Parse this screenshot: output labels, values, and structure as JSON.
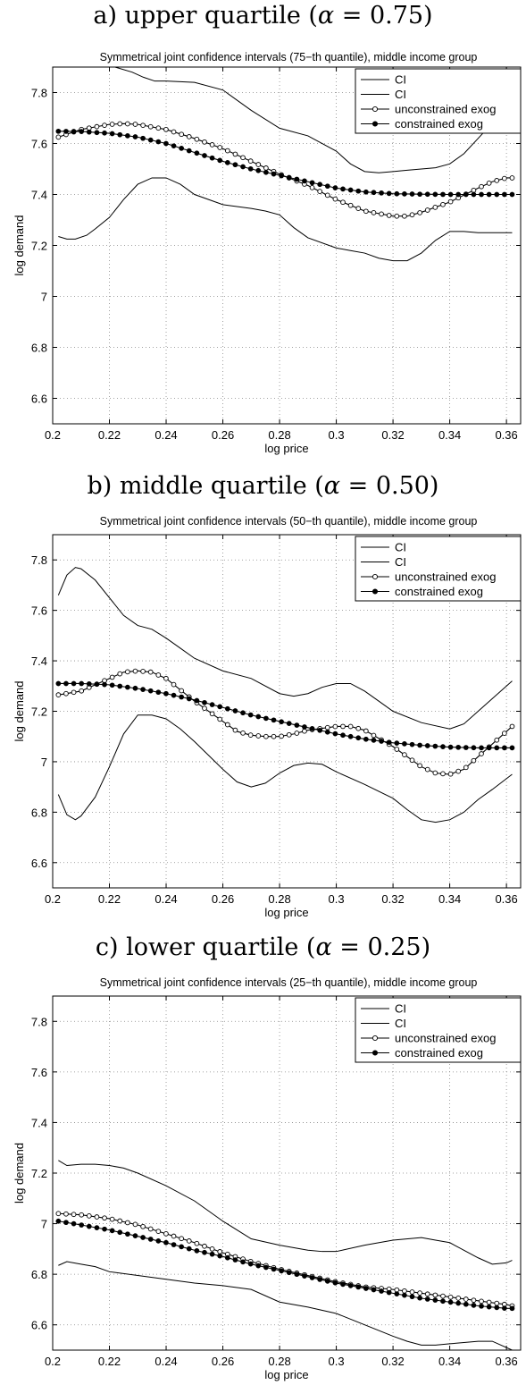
{
  "captions": [
    {
      "prefix": "a) upper quartile (",
      "alpha": "α",
      "rest": " = 0.75)"
    },
    {
      "prefix": "b) middle quartile (",
      "alpha": "α",
      "rest": " = 0.50)"
    },
    {
      "prefix": "c) lower quartile (",
      "alpha": "α",
      "rest": " = 0.25)"
    }
  ],
  "chart_data": [
    {
      "type": "line",
      "title": "Symmetrical joint confidence intervals (75−th quantile), middle income group",
      "xlabel": "log price",
      "ylabel": "log demand",
      "xlim": [
        0.2,
        0.365
      ],
      "ylim": [
        6.5,
        7.9
      ],
      "xticks": [
        0.2,
        0.22,
        0.24,
        0.26,
        0.28,
        0.3,
        0.32,
        0.34,
        0.36
      ],
      "xtick_labels": [
        "0.2",
        "0.22",
        "0.24",
        "0.26",
        "0.28",
        "0.3",
        "0.32",
        "0.34",
        "0.36"
      ],
      "yticks": [
        6.6,
        6.8,
        7,
        7.2,
        7.4,
        7.6,
        7.8
      ],
      "ytick_labels": [
        "6.6",
        "6.8",
        "7",
        "7.2",
        "7.4",
        "7.6",
        "7.8"
      ],
      "grid": true,
      "legend_position": "top-right",
      "series": [
        {
          "name": "CI",
          "style": "line",
          "x": [
            0.222,
            0.228,
            0.232,
            0.236,
            0.24,
            0.25,
            0.26,
            0.27,
            0.28,
            0.29,
            0.3,
            0.305,
            0.31,
            0.315,
            0.32,
            0.325,
            0.33,
            0.335,
            0.34,
            0.345,
            0.35,
            0.355,
            0.36,
            0.362
          ],
          "y": [
            7.9,
            7.88,
            7.86,
            7.845,
            7.845,
            7.84,
            7.81,
            7.73,
            7.66,
            7.63,
            7.57,
            7.52,
            7.49,
            7.485,
            7.49,
            7.495,
            7.5,
            7.505,
            7.52,
            7.56,
            7.62,
            7.68,
            7.74,
            7.76
          ]
        },
        {
          "name": "CI",
          "style": "line",
          "x": [
            0.202,
            0.205,
            0.208,
            0.212,
            0.215,
            0.22,
            0.225,
            0.23,
            0.235,
            0.24,
            0.245,
            0.25,
            0.26,
            0.27,
            0.275,
            0.28,
            0.285,
            0.29,
            0.3,
            0.305,
            0.31,
            0.315,
            0.32,
            0.325,
            0.33,
            0.335,
            0.34,
            0.345,
            0.35,
            0.355,
            0.362
          ],
          "y": [
            7.235,
            7.225,
            7.225,
            7.24,
            7.265,
            7.31,
            7.38,
            7.44,
            7.465,
            7.465,
            7.44,
            7.4,
            7.36,
            7.345,
            7.335,
            7.32,
            7.27,
            7.23,
            7.19,
            7.18,
            7.17,
            7.15,
            7.14,
            7.14,
            7.17,
            7.22,
            7.255,
            7.255,
            7.25,
            7.25,
            7.25
          ]
        },
        {
          "name": "unconstrained exog",
          "style": "open",
          "x": [
            0.202,
            0.21,
            0.22,
            0.225,
            0.23,
            0.24,
            0.25,
            0.26,
            0.27,
            0.28,
            0.29,
            0.3,
            0.31,
            0.32,
            0.325,
            0.33,
            0.34,
            0.35,
            0.355,
            0.36,
            0.362
          ],
          "y": [
            7.625,
            7.655,
            7.675,
            7.678,
            7.675,
            7.655,
            7.62,
            7.58,
            7.53,
            7.48,
            7.435,
            7.38,
            7.335,
            7.315,
            7.315,
            7.33,
            7.37,
            7.425,
            7.45,
            7.465,
            7.465
          ]
        },
        {
          "name": "constrained exog",
          "style": "filled",
          "x": [
            0.202,
            0.21,
            0.22,
            0.23,
            0.24,
            0.25,
            0.26,
            0.27,
            0.28,
            0.29,
            0.3,
            0.31,
            0.32,
            0.33,
            0.34,
            0.35,
            0.36,
            0.362
          ],
          "y": [
            7.648,
            7.647,
            7.64,
            7.625,
            7.6,
            7.565,
            7.53,
            7.5,
            7.475,
            7.45,
            7.425,
            7.41,
            7.403,
            7.401,
            7.4,
            7.4,
            7.4,
            7.4
          ]
        }
      ]
    },
    {
      "type": "line",
      "title": "Symmetrical joint confidence intervals (50−th quantile), middle income group",
      "xlabel": "log price",
      "ylabel": "log demand",
      "xlim": [
        0.2,
        0.365
      ],
      "ylim": [
        6.5,
        7.9
      ],
      "xticks": [
        0.2,
        0.22,
        0.24,
        0.26,
        0.28,
        0.3,
        0.32,
        0.34,
        0.36
      ],
      "xtick_labels": [
        "0.2",
        "0.22",
        "0.24",
        "0.26",
        "0.28",
        "0.3",
        "0.32",
        "0.34",
        "0.36"
      ],
      "yticks": [
        6.6,
        6.8,
        7,
        7.2,
        7.4,
        7.6,
        7.8
      ],
      "ytick_labels": [
        "6.6",
        "6.8",
        "7",
        "7.2",
        "7.4",
        "7.6",
        "7.8"
      ],
      "grid": true,
      "legend_position": "top-right",
      "series": [
        {
          "name": "CI",
          "style": "line",
          "x": [
            0.202,
            0.205,
            0.208,
            0.21,
            0.215,
            0.22,
            0.225,
            0.23,
            0.235,
            0.24,
            0.245,
            0.25,
            0.26,
            0.27,
            0.28,
            0.285,
            0.29,
            0.295,
            0.3,
            0.305,
            0.31,
            0.315,
            0.32,
            0.33,
            0.34,
            0.345,
            0.35,
            0.355,
            0.362
          ],
          "y": [
            7.66,
            7.74,
            7.77,
            7.765,
            7.72,
            7.65,
            7.58,
            7.54,
            7.525,
            7.49,
            7.45,
            7.41,
            7.36,
            7.33,
            7.27,
            7.26,
            7.27,
            7.295,
            7.31,
            7.31,
            7.28,
            7.24,
            7.2,
            7.155,
            7.13,
            7.15,
            7.2,
            7.25,
            7.32
          ]
        },
        {
          "name": "CI",
          "style": "line",
          "x": [
            0.202,
            0.205,
            0.208,
            0.21,
            0.215,
            0.22,
            0.225,
            0.23,
            0.235,
            0.24,
            0.245,
            0.25,
            0.26,
            0.265,
            0.27,
            0.275,
            0.28,
            0.285,
            0.29,
            0.295,
            0.3,
            0.31,
            0.32,
            0.325,
            0.33,
            0.335,
            0.34,
            0.345,
            0.35,
            0.355,
            0.362
          ],
          "y": [
            6.87,
            6.79,
            6.77,
            6.785,
            6.86,
            6.98,
            7.11,
            7.185,
            7.185,
            7.17,
            7.13,
            7.08,
            6.97,
            6.92,
            6.9,
            6.915,
            6.955,
            6.985,
            6.995,
            6.99,
            6.96,
            6.91,
            6.855,
            6.81,
            6.77,
            6.76,
            6.77,
            6.8,
            6.85,
            6.89,
            6.95
          ]
        },
        {
          "name": "unconstrained exog",
          "style": "open",
          "x": [
            0.202,
            0.21,
            0.22,
            0.225,
            0.23,
            0.235,
            0.24,
            0.25,
            0.26,
            0.265,
            0.27,
            0.275,
            0.28,
            0.285,
            0.29,
            0.3,
            0.305,
            0.31,
            0.32,
            0.33,
            0.335,
            0.34,
            0.345,
            0.35,
            0.355,
            0.36,
            0.362
          ],
          "y": [
            7.265,
            7.28,
            7.33,
            7.355,
            7.36,
            7.355,
            7.33,
            7.24,
            7.16,
            7.12,
            7.105,
            7.1,
            7.1,
            7.11,
            7.125,
            7.14,
            7.14,
            7.125,
            7.06,
            6.98,
            6.955,
            6.95,
            6.97,
            7.02,
            7.07,
            7.12,
            7.14
          ]
        },
        {
          "name": "constrained exog",
          "style": "filled",
          "x": [
            0.202,
            0.21,
            0.22,
            0.23,
            0.24,
            0.25,
            0.26,
            0.27,
            0.28,
            0.29,
            0.3,
            0.31,
            0.32,
            0.33,
            0.34,
            0.35,
            0.36,
            0.362
          ],
          "y": [
            7.31,
            7.31,
            7.305,
            7.29,
            7.27,
            7.245,
            7.215,
            7.185,
            7.16,
            7.135,
            7.11,
            7.09,
            7.075,
            7.065,
            7.058,
            7.055,
            7.055,
            7.055
          ]
        }
      ]
    },
    {
      "type": "line",
      "title": "Symmetrical joint confidence intervals (25−th quantile), middle income group",
      "xlabel": "log price",
      "ylabel": "log demand",
      "xlim": [
        0.2,
        0.365
      ],
      "ylim": [
        6.5,
        7.9
      ],
      "xticks": [
        0.2,
        0.22,
        0.24,
        0.26,
        0.28,
        0.3,
        0.32,
        0.34,
        0.36
      ],
      "xtick_labels": [
        "0.2",
        "0.22",
        "0.24",
        "0.26",
        "0.28",
        "0.3",
        "0.32",
        "0.34",
        "0.36"
      ],
      "yticks": [
        6.6,
        6.8,
        7,
        7.2,
        7.4,
        7.6,
        7.8
      ],
      "ytick_labels": [
        "6.6",
        "6.8",
        "7",
        "7.2",
        "7.4",
        "7.6",
        "7.8"
      ],
      "grid": true,
      "legend_position": "top-right",
      "series": [
        {
          "name": "CI",
          "style": "line",
          "x": [
            0.202,
            0.205,
            0.21,
            0.215,
            0.22,
            0.225,
            0.23,
            0.24,
            0.25,
            0.26,
            0.27,
            0.28,
            0.29,
            0.295,
            0.3,
            0.31,
            0.32,
            0.33,
            0.335,
            0.34,
            0.345,
            0.35,
            0.355,
            0.36,
            0.362
          ],
          "y": [
            7.25,
            7.23,
            7.235,
            7.235,
            7.23,
            7.22,
            7.2,
            7.15,
            7.09,
            7.01,
            6.94,
            6.915,
            6.895,
            6.89,
            6.89,
            6.915,
            6.935,
            6.945,
            6.935,
            6.925,
            6.895,
            6.865,
            6.84,
            6.845,
            6.855
          ]
        },
        {
          "name": "CI",
          "style": "line",
          "x": [
            0.202,
            0.205,
            0.21,
            0.215,
            0.22,
            0.23,
            0.24,
            0.25,
            0.26,
            0.27,
            0.28,
            0.29,
            0.3,
            0.31,
            0.32,
            0.325,
            0.33,
            0.335,
            0.34,
            0.345,
            0.35,
            0.355,
            0.358,
            0.362
          ],
          "y": [
            6.835,
            6.85,
            6.84,
            6.83,
            6.81,
            6.795,
            6.78,
            6.765,
            6.755,
            6.74,
            6.69,
            6.67,
            6.645,
            6.6,
            6.555,
            6.535,
            6.52,
            6.52,
            6.525,
            6.53,
            6.535,
            6.535,
            6.52,
            6.5
          ]
        },
        {
          "name": "unconstrained exog",
          "style": "open",
          "x": [
            0.202,
            0.21,
            0.22,
            0.23,
            0.24,
            0.25,
            0.26,
            0.27,
            0.28,
            0.29,
            0.3,
            0.31,
            0.32,
            0.33,
            0.34,
            0.35,
            0.36,
            0.362
          ],
          "y": [
            7.04,
            7.035,
            7.02,
            6.995,
            6.96,
            6.925,
            6.885,
            6.85,
            6.82,
            6.795,
            6.77,
            6.75,
            6.74,
            6.725,
            6.71,
            6.695,
            6.68,
            6.675
          ]
        },
        {
          "name": "constrained exog",
          "style": "filled",
          "x": [
            0.202,
            0.21,
            0.22,
            0.23,
            0.24,
            0.25,
            0.26,
            0.27,
            0.28,
            0.29,
            0.3,
            0.31,
            0.32,
            0.33,
            0.34,
            0.35,
            0.36,
            0.362
          ],
          "y": [
            7.01,
            6.995,
            6.975,
            6.95,
            6.925,
            6.895,
            6.87,
            6.84,
            6.815,
            6.79,
            6.765,
            6.745,
            6.725,
            6.705,
            6.69,
            6.675,
            6.665,
            6.665
          ]
        }
      ]
    }
  ]
}
